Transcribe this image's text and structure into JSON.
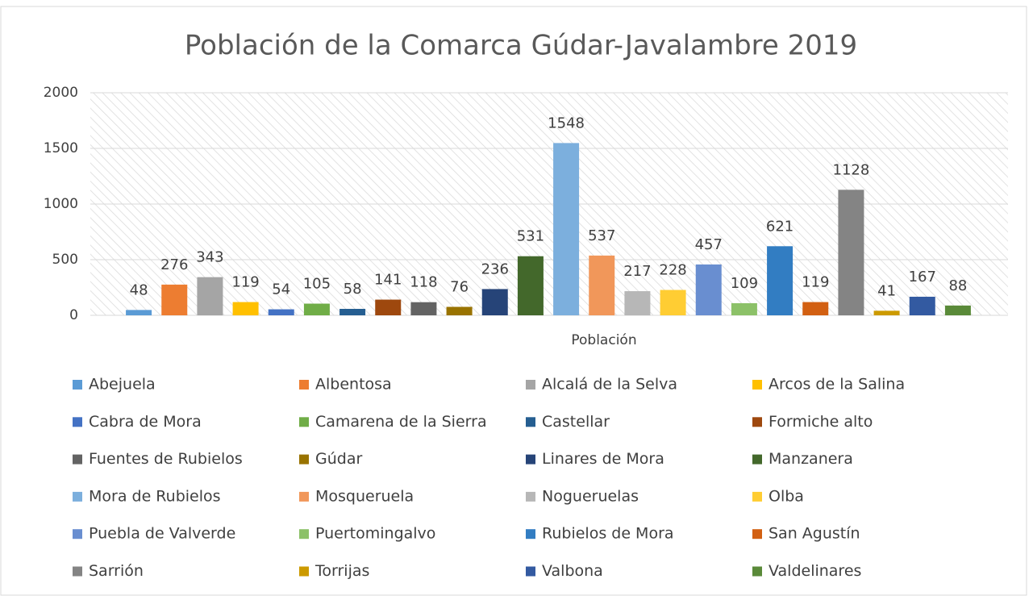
{
  "chart_data": {
    "type": "bar",
    "title": "Población de la Comarca Gúdar-Javalambre 2019",
    "categories": [
      "Población"
    ],
    "series": [
      {
        "name": "Abejuela",
        "color": "#5b9bd5",
        "values": [
          48
        ]
      },
      {
        "name": "Albentosa",
        "color": "#ed7d31",
        "values": [
          276
        ]
      },
      {
        "name": "Alcalá de la Selva",
        "color": "#a5a5a5",
        "values": [
          343
        ]
      },
      {
        "name": "Arcos de la Salina",
        "color": "#ffc000",
        "values": [
          119
        ]
      },
      {
        "name": "Cabra de Mora",
        "color": "#4472c4",
        "values": [
          54
        ]
      },
      {
        "name": "Camarena de la Sierra",
        "color": "#70ad47",
        "values": [
          105
        ]
      },
      {
        "name": "Castellar",
        "color": "#255e91",
        "values": [
          58
        ]
      },
      {
        "name": "Formiche alto",
        "color": "#9e480e",
        "values": [
          141
        ]
      },
      {
        "name": "Fuentes de Rubielos",
        "color": "#636363",
        "values": [
          118
        ]
      },
      {
        "name": "Gúdar",
        "color": "#997300",
        "values": [
          76
        ]
      },
      {
        "name": "Linares de Mora",
        "color": "#264478",
        "values": [
          236
        ]
      },
      {
        "name": "Manzanera",
        "color": "#43682b",
        "values": [
          531
        ]
      },
      {
        "name": "Mora de Rubielos",
        "color": "#7cafdd",
        "values": [
          1548
        ]
      },
      {
        "name": "Mosqueruela",
        "color": "#f1975a",
        "values": [
          537
        ]
      },
      {
        "name": "Nogueruelas",
        "color": "#b7b7b7",
        "values": [
          217
        ]
      },
      {
        "name": "Olba",
        "color": "#ffcd33",
        "values": [
          228
        ]
      },
      {
        "name": "Puebla de Valverde",
        "color": "#698ed0",
        "values": [
          457
        ]
      },
      {
        "name": "Puertomingalvo",
        "color": "#8cc168",
        "values": [
          109
        ]
      },
      {
        "name": "Rubielos de Mora",
        "color": "#327dc2",
        "values": [
          621
        ]
      },
      {
        "name": "San Agustín",
        "color": "#d26012",
        "values": [
          119
        ]
      },
      {
        "name": "Sarrión",
        "color": "#848484",
        "values": [
          1128
        ]
      },
      {
        "name": "Torrijas",
        "color": "#cc9a00",
        "values": [
          41
        ]
      },
      {
        "name": "Valbona",
        "color": "#335aa1",
        "values": [
          167
        ]
      },
      {
        "name": "Valdelinares",
        "color": "#5a8a39",
        "values": [
          88
        ]
      }
    ],
    "ylim": [
      0,
      2000
    ],
    "yticks": [
      0,
      500,
      1000,
      1500,
      2000
    ],
    "grid": true,
    "legend": "bottom"
  }
}
